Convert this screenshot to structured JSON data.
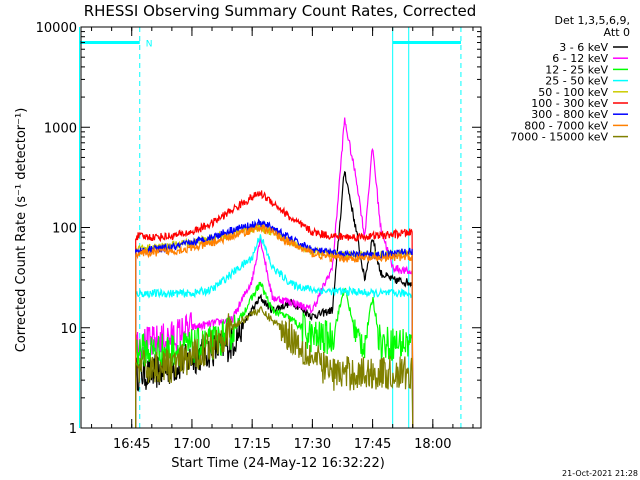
{
  "chart_data": {
    "type": "line",
    "title": "RHESSI Observing Summary Count Rates, Corrected",
    "xlabel": "Start Time (24-May-12 16:32:22)",
    "ylabel": "Corrected Count Rate (s⁻¹ detector⁻¹)",
    "y_scale": "log",
    "ylim": [
      1,
      10000
    ],
    "xlim": [
      "16:32:22",
      "18:12:00"
    ],
    "x_ticks": [
      "16:45",
      "17:00",
      "17:15",
      "17:30",
      "17:45",
      "18:00"
    ],
    "y_ticks": [
      "1",
      "10",
      "100",
      "1000",
      "10000"
    ],
    "legend_header": [
      "Det 1,3,5,6,9,",
      "Att 0"
    ],
    "legend_position": "outside-right",
    "attenuator_marker": {
      "label": "N",
      "level": 7000,
      "color": "#00ffff",
      "segments": [
        [
          "16:32",
          "16:47"
        ],
        [
          "17:50",
          "18:07"
        ]
      ],
      "dashed_times": [
        "16:47",
        "18:07"
      ],
      "solid_times": [
        "16:32",
        "17:50",
        "17:54"
      ]
    },
    "data_window": [
      "16:46",
      "17:55"
    ],
    "series": [
      {
        "name": "3 - 6 keV",
        "color": "#000000",
        "x": [
          "16:46",
          "16:50",
          "16:55",
          "17:00",
          "17:05",
          "17:10",
          "17:15",
          "17:17",
          "17:20",
          "17:25",
          "17:30",
          "17:35",
          "17:38",
          "17:41",
          "17:43",
          "17:45",
          "17:47",
          "17:50",
          "17:55"
        ],
        "y": [
          3.5,
          3.5,
          4,
          5,
          6,
          7,
          15,
          20,
          15,
          18,
          13,
          15,
          380,
          90,
          30,
          80,
          35,
          30,
          28
        ]
      },
      {
        "name": "6 - 12 keV",
        "color": "#ff00ff",
        "x": [
          "16:46",
          "16:50",
          "16:55",
          "17:00",
          "17:05",
          "17:10",
          "17:15",
          "17:17",
          "17:20",
          "17:25",
          "17:30",
          "17:35",
          "17:38",
          "17:41",
          "17:43",
          "17:45",
          "17:47",
          "17:50",
          "17:55"
        ],
        "y": [
          7,
          7,
          8,
          10,
          11,
          12,
          30,
          80,
          20,
          18,
          15,
          40,
          1200,
          300,
          80,
          650,
          100,
          40,
          35
        ]
      },
      {
        "name": "12 - 25 keV",
        "color": "#00ff00",
        "x": [
          "16:46",
          "16:50",
          "16:55",
          "17:00",
          "17:05",
          "17:10",
          "17:15",
          "17:17",
          "17:20",
          "17:25",
          "17:30",
          "17:35",
          "17:38",
          "17:41",
          "17:43",
          "17:45",
          "17:47",
          "17:50",
          "17:55"
        ],
        "y": [
          6,
          6,
          6,
          6.5,
          7,
          9,
          20,
          28,
          15,
          12,
          8,
          8,
          25,
          8,
          7,
          20,
          7,
          7,
          7
        ]
      },
      {
        "name": "25 - 50 keV",
        "color": "#00ffff",
        "x": [
          "16:46",
          "16:50",
          "16:55",
          "17:00",
          "17:05",
          "17:10",
          "17:15",
          "17:17",
          "17:20",
          "17:25",
          "17:30",
          "17:35",
          "17:40",
          "17:45",
          "17:50",
          "17:55"
        ],
        "y": [
          22,
          22,
          22,
          22,
          24,
          35,
          50,
          85,
          40,
          27,
          24,
          23,
          23,
          22,
          22,
          22
        ]
      },
      {
        "name": "50 - 100 keV",
        "color": "#cccc00",
        "x": [
          "16:46",
          "16:50",
          "16:55",
          "17:00",
          "17:05",
          "17:10",
          "17:15",
          "17:17",
          "17:20",
          "17:25",
          "17:30",
          "17:35",
          "17:40",
          "17:45",
          "17:50",
          "17:55"
        ],
        "y": [
          62,
          63,
          66,
          72,
          78,
          88,
          98,
          100,
          90,
          70,
          58,
          54,
          53,
          53,
          54,
          55
        ]
      },
      {
        "name": "100 - 300 keV",
        "color": "#ff0000",
        "x": [
          "16:46",
          "16:50",
          "16:55",
          "17:00",
          "17:05",
          "17:10",
          "17:15",
          "17:17",
          "17:20",
          "17:25",
          "17:30",
          "17:35",
          "17:40",
          "17:45",
          "17:50",
          "17:55"
        ],
        "y": [
          82,
          80,
          82,
          90,
          110,
          150,
          200,
          220,
          180,
          120,
          90,
          82,
          80,
          82,
          85,
          90
        ]
      },
      {
        "name": "300 - 800 keV",
        "color": "#0000ff",
        "x": [
          "16:46",
          "16:50",
          "16:55",
          "17:00",
          "17:05",
          "17:10",
          "17:15",
          "17:17",
          "17:20",
          "17:25",
          "17:30",
          "17:35",
          "17:40",
          "17:45",
          "17:50",
          "17:55"
        ],
        "y": [
          58,
          60,
          63,
          70,
          80,
          95,
          105,
          110,
          100,
          75,
          60,
          55,
          53,
          53,
          55,
          58
        ]
      },
      {
        "name": "800 - 7000 keV",
        "color": "#ff8000",
        "x": [
          "16:46",
          "16:50",
          "16:55",
          "17:00",
          "17:05",
          "17:10",
          "17:15",
          "17:17",
          "17:20",
          "17:25",
          "17:30",
          "17:35",
          "17:40",
          "17:45",
          "17:50",
          "17:55"
        ],
        "y": [
          55,
          56,
          58,
          62,
          70,
          82,
          95,
          100,
          90,
          68,
          55,
          50,
          49,
          49,
          50,
          51
        ]
      },
      {
        "name": "7000 - 15000 keV",
        "color": "#808000",
        "x": [
          "16:46",
          "16:50",
          "16:55",
          "17:00",
          "17:05",
          "17:10",
          "17:15",
          "17:17",
          "17:20",
          "17:25",
          "17:30",
          "17:35",
          "17:40",
          "17:45",
          "17:50",
          "17:55"
        ],
        "y": [
          4,
          4,
          4.2,
          5,
          7,
          10,
          14,
          15,
          12,
          8,
          5,
          3.5,
          3.5,
          3.5,
          3.5,
          3.5
        ]
      }
    ]
  },
  "timestamp": "21-Oct-2021 21:28"
}
